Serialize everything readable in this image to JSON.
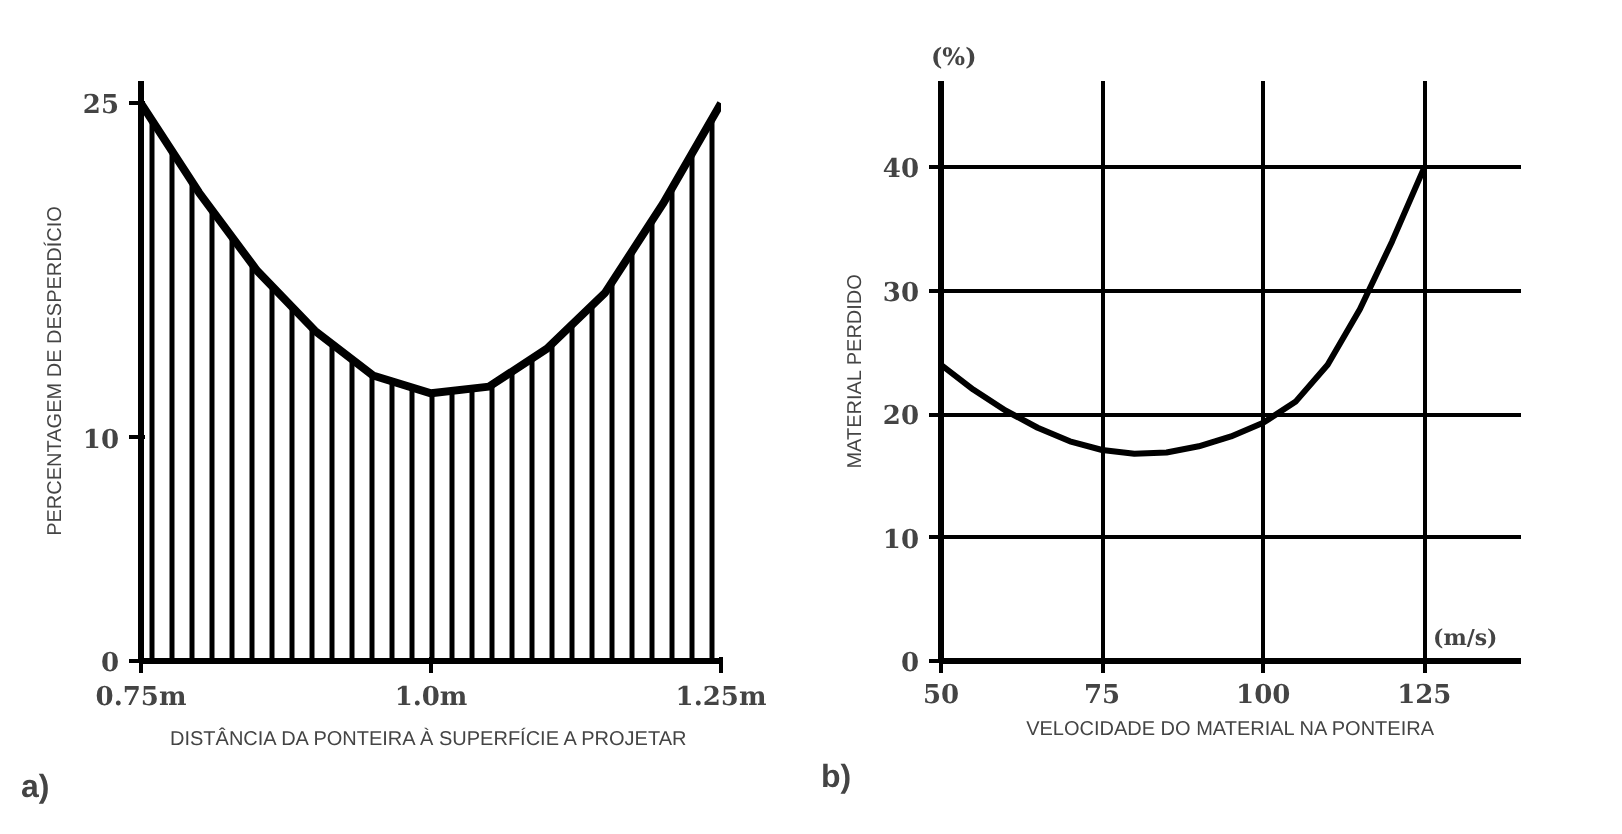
{
  "chart_data": [
    {
      "type": "area",
      "xlabel": "DISTÂNCIA DA PONTEIRA À SUPERFÍCIE A PROJETAR",
      "ylabel": "PERCENTAGEM DE DESPERDÍCIO",
      "x": [
        0.75,
        0.8,
        0.85,
        0.9,
        0.95,
        1.0,
        1.05,
        1.1,
        1.15,
        1.2,
        1.25
      ],
      "series": [
        {
          "color": "#000000",
          "values": [
            25,
            21,
            17.5,
            14.8,
            12.8,
            12,
            12.3,
            14,
            16.5,
            20.5,
            25
          ]
        }
      ],
      "xlim": [
        0.75,
        1.25
      ],
      "ylim": [
        0,
        26
      ],
      "xticks": [
        {
          "value": 0.75,
          "label": "0.75m"
        },
        {
          "value": 1.0,
          "label": "1.0m"
        },
        {
          "value": 1.25,
          "label": "1.25m"
        }
      ],
      "yticks": [
        0,
        10,
        25
      ],
      "grid": false,
      "annotations": [
        "a)"
      ]
    },
    {
      "type": "line",
      "xlabel": "VELOCIDADE DO MATERIAL NA PONTEIRA",
      "ylabel": "MATERIAL PERDIDO",
      "x": [
        50,
        55,
        60,
        65,
        70,
        75,
        80,
        85,
        90,
        95,
        100,
        105,
        110,
        115,
        120,
        125
      ],
      "series": [
        {
          "color": "#000000",
          "values": [
            24,
            22,
            20.3,
            18.9,
            17.8,
            17.1,
            16.8,
            16.9,
            17.4,
            18.2,
            19.3,
            21,
            24,
            28.5,
            34,
            40
          ]
        }
      ],
      "xlim": [
        50,
        140
      ],
      "ylim": [
        0,
        47
      ],
      "xticks": [
        50,
        75,
        100,
        125
      ],
      "yticks": [
        0,
        10,
        20,
        30,
        40
      ],
      "grid": true,
      "annotations": [
        "(%)",
        "(m/s)",
        "b)"
      ]
    }
  ]
}
